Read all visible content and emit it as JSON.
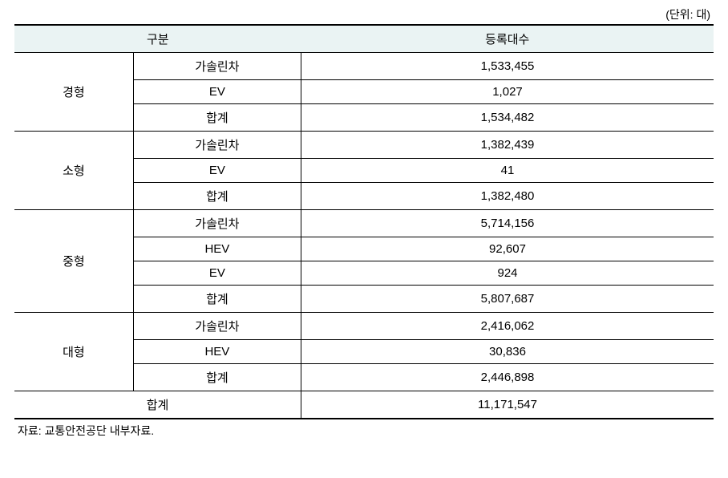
{
  "unit_label": "(단위: 대)",
  "headers": {
    "category": "구분",
    "registered": "등록대수"
  },
  "sections": [
    {
      "category": "경형",
      "rows": [
        {
          "type": "가솔린차",
          "value": "1,533,455"
        },
        {
          "type": "EV",
          "value": "1,027"
        },
        {
          "type": "합계",
          "value": "1,534,482"
        }
      ]
    },
    {
      "category": "소형",
      "rows": [
        {
          "type": "가솔린차",
          "value": "1,382,439"
        },
        {
          "type": "EV",
          "value": "41"
        },
        {
          "type": "합계",
          "value": "1,382,480"
        }
      ]
    },
    {
      "category": "중형",
      "rows": [
        {
          "type": "가솔린차",
          "value": "5,714,156"
        },
        {
          "type": "HEV",
          "value": "92,607"
        },
        {
          "type": "EV",
          "value": "924"
        },
        {
          "type": "합계",
          "value": "5,807,687"
        }
      ]
    },
    {
      "category": "대형",
      "rows": [
        {
          "type": "가솔린차",
          "value": "2,416,062"
        },
        {
          "type": "HEV",
          "value": "30,836"
        },
        {
          "type": "합계",
          "value": "2,446,898"
        }
      ]
    }
  ],
  "total": {
    "label": "합계",
    "value": "11,171,547"
  },
  "source_note": "자료: 교통안전공단 내부자료.",
  "colors": {
    "header_bg": "#eaf3f3",
    "border": "#000000",
    "text": "#000000",
    "background": "#ffffff"
  },
  "typography": {
    "body_fontsize": 15,
    "note_fontsize": 14,
    "font_family": "Malgun Gothic"
  }
}
